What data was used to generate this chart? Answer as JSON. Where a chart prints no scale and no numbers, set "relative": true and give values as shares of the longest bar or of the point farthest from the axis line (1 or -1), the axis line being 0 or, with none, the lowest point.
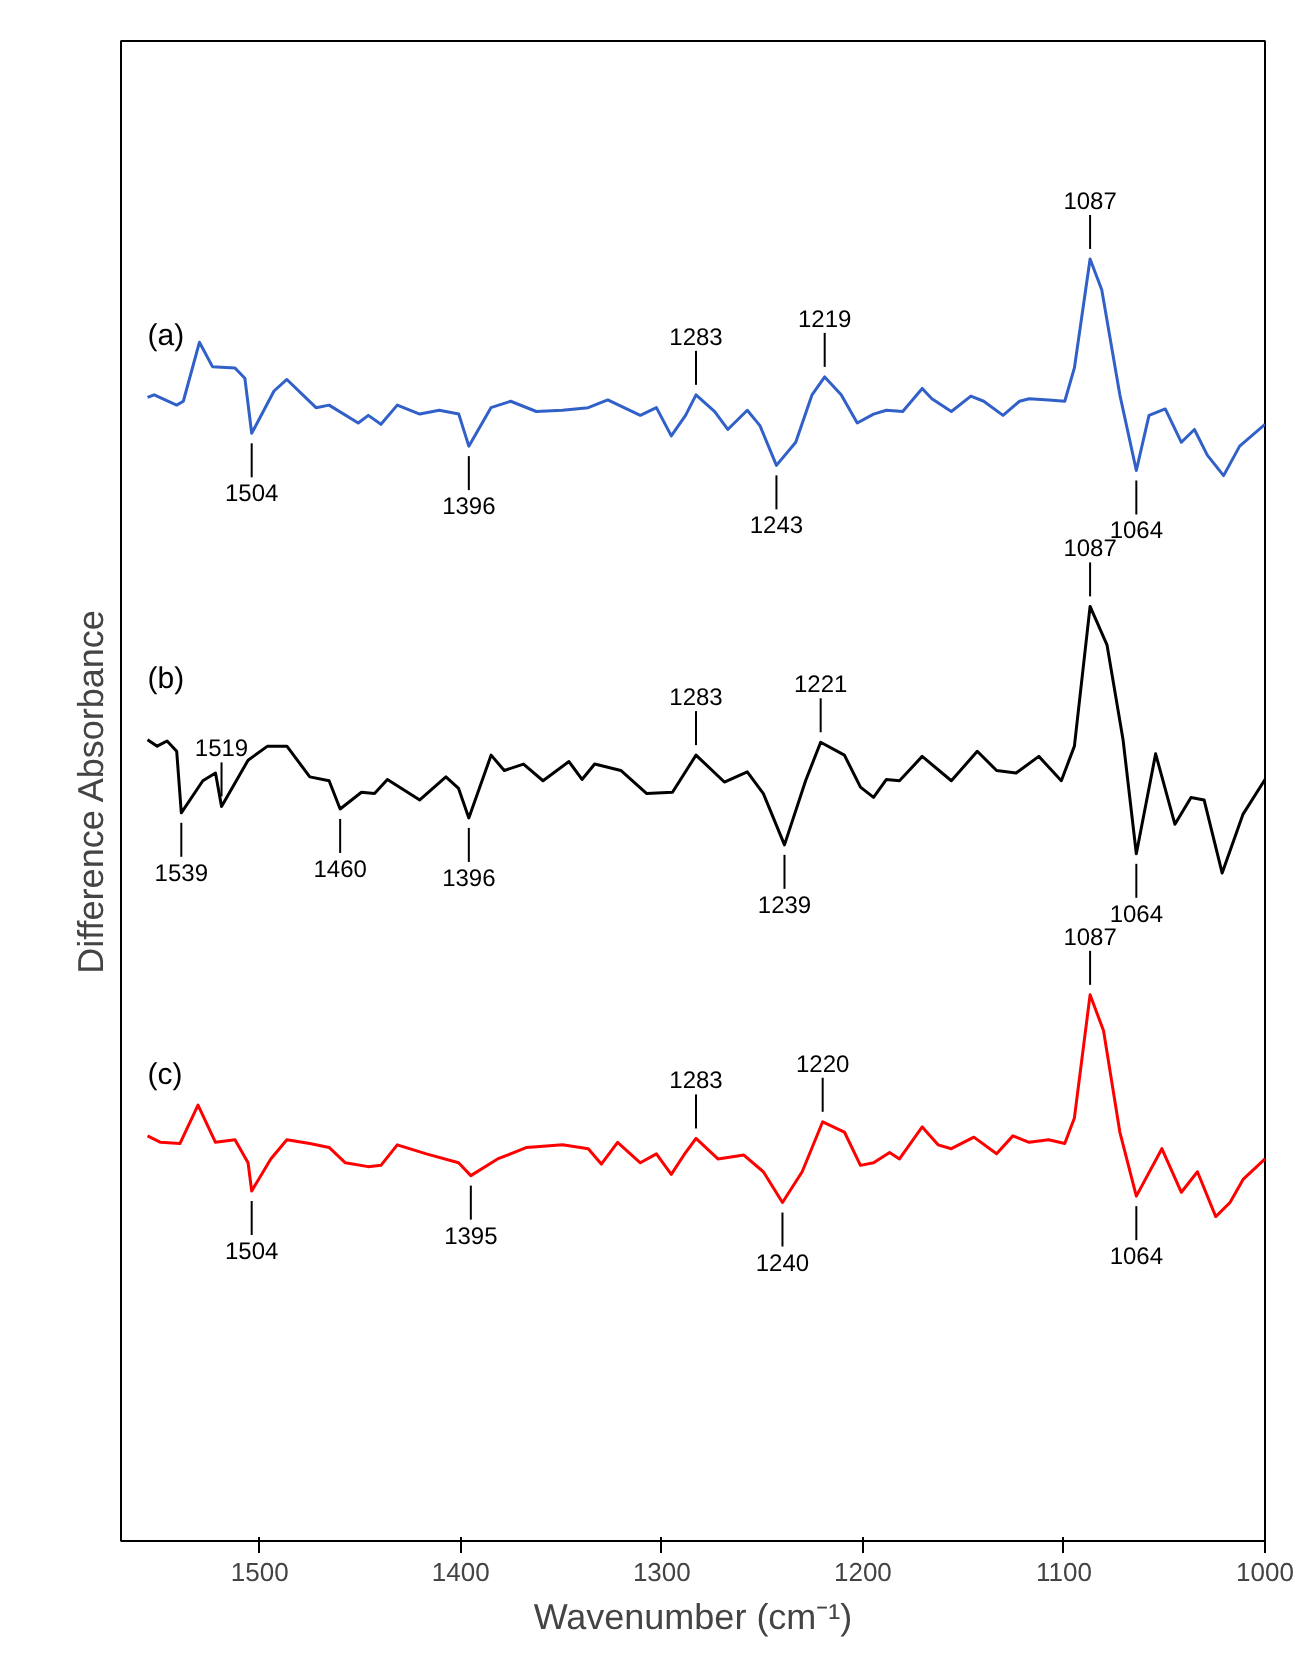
{
  "chart_data": {
    "type": "line",
    "relative": true,
    "xlabel": "Wavenumber (cm⁻¹)",
    "ylabel": "Difference Absorbance",
    "xlim": [
      1569,
      1000
    ],
    "xticks": [
      1500,
      1400,
      1300,
      1200,
      1100,
      1000
    ],
    "grid": false,
    "marker": "none",
    "line_style": "solid",
    "series": [
      {
        "name": "(a)",
        "color": "#3060c8",
        "x": [
          1555.8,
          1552.5,
          1541.3,
          1538,
          1530,
          1523.5,
          1512.3,
          1507.4,
          1504,
          1492.9,
          1486.5,
          1472,
          1465.5,
          1451,
          1446,
          1439.7,
          1431.6,
          1420.4,
          1410.7,
          1401,
          1396,
          1385,
          1375.2,
          1362.4,
          1349.4,
          1336.6,
          1326.9,
          1310.7,
          1302.7,
          1295.3,
          1288.2,
          1283,
          1273.7,
          1267.2,
          1257.5,
          1251.2,
          1243,
          1233.4,
          1225.3,
          1219,
          1210.8,
          1202.8,
          1194.7,
          1188.3,
          1180.2,
          1170.5,
          1165.7,
          1156,
          1146.3,
          1139.9,
          1130.3,
          1122.1,
          1117.3,
          1107.6,
          1099.6,
          1094.8,
          1087,
          1081.2,
          1072.2,
          1064,
          1057.7,
          1049.6,
          1041.6,
          1035.1,
          1028.7,
          1020.6,
          1012.6,
          1000
        ],
        "values": [
          0.892,
          0.894,
          0.886,
          0.889,
          0.935,
          0.916,
          0.915,
          0.907,
          0.864,
          0.897,
          0.906,
          0.884,
          0.886,
          0.872,
          0.878,
          0.871,
          0.886,
          0.879,
          0.882,
          0.879,
          0.854,
          0.884,
          0.889,
          0.881,
          0.882,
          0.884,
          0.89,
          0.878,
          0.884,
          0.862,
          0.878,
          0.894,
          0.881,
          0.867,
          0.882,
          0.87,
          0.839,
          0.857,
          0.894,
          0.908,
          0.894,
          0.872,
          0.879,
          0.882,
          0.881,
          0.899,
          0.891,
          0.881,
          0.893,
          0.889,
          0.878,
          0.889,
          0.891,
          0.89,
          0.889,
          0.915,
          1.0,
          0.976,
          0.894,
          0.835,
          0.878,
          0.883,
          0.857,
          0.867,
          0.847,
          0.831,
          0.854,
          0.871
        ]
      },
      {
        "name": "(b)",
        "color": "#000000",
        "x": [
          1555.8,
          1551,
          1546.1,
          1541.3,
          1539,
          1528.3,
          1522,
          1519,
          1505.8,
          1496.1,
          1486.5,
          1475.1,
          1465.5,
          1460,
          1449.4,
          1442.9,
          1436.5,
          1420.4,
          1407.4,
          1401.1,
          1396,
          1384.9,
          1378.4,
          1368.8,
          1359.1,
          1346.2,
          1339.7,
          1333.4,
          1320.4,
          1307.5,
          1294.7,
          1283,
          1268.9,
          1257.5,
          1249.5,
          1239,
          1228.5,
          1221,
          1209.2,
          1201.2,
          1194.7,
          1188.3,
          1181.8,
          1170.5,
          1156,
          1143.1,
          1133.5,
          1123.8,
          1112.5,
          1101.3,
          1094.8,
          1087,
          1078.6,
          1070.6,
          1064,
          1054.4,
          1044.8,
          1036.8,
          1030.3,
          1021.3,
          1010.9,
          1000
        ],
        "values": [
          0.625,
          0.62,
          0.624,
          0.616,
          0.568,
          0.593,
          0.599,
          0.573,
          0.609,
          0.62,
          0.62,
          0.596,
          0.593,
          0.571,
          0.584,
          0.583,
          0.594,
          0.578,
          0.596,
          0.587,
          0.564,
          0.613,
          0.601,
          0.606,
          0.593,
          0.608,
          0.594,
          0.606,
          0.601,
          0.583,
          0.584,
          0.613,
          0.592,
          0.6,
          0.583,
          0.543,
          0.593,
          0.623,
          0.613,
          0.588,
          0.58,
          0.594,
          0.593,
          0.612,
          0.593,
          0.616,
          0.601,
          0.599,
          0.612,
          0.593,
          0.62,
          0.729,
          0.699,
          0.625,
          0.536,
          0.614,
          0.559,
          0.58,
          0.578,
          0.521,
          0.567,
          0.594
        ]
      },
      {
        "name": "(c)",
        "color": "#ff0000",
        "x": [
          1555.8,
          1549.3,
          1539.7,
          1530.7,
          1522,
          1512.3,
          1505.8,
          1504,
          1494.5,
          1486.5,
          1475.1,
          1465.5,
          1457.4,
          1446.1,
          1439.7,
          1431.6,
          1417.1,
          1401.1,
          1395,
          1381.7,
          1367.2,
          1349.4,
          1336.6,
          1330.1,
          1322,
          1310.7,
          1302.7,
          1295.3,
          1288.2,
          1283,
          1272.1,
          1259.2,
          1249.5,
          1240,
          1230.2,
          1220,
          1209.2,
          1201.2,
          1194.7,
          1186.7,
          1181.8,
          1170.5,
          1162.6,
          1156,
          1144.8,
          1133.5,
          1125.4,
          1117.3,
          1107.6,
          1099.6,
          1094.8,
          1087,
          1080.3,
          1072.2,
          1064,
          1051.3,
          1041.6,
          1033.6,
          1024.5,
          1017.4,
          1010.9,
          1000
        ],
        "values": [
          0.316,
          0.311,
          0.31,
          0.34,
          0.311,
          0.313,
          0.295,
          0.273,
          0.298,
          0.313,
          0.31,
          0.307,
          0.295,
          0.292,
          0.293,
          0.309,
          0.302,
          0.295,
          0.285,
          0.298,
          0.307,
          0.309,
          0.306,
          0.294,
          0.311,
          0.295,
          0.302,
          0.286,
          0.303,
          0.314,
          0.298,
          0.301,
          0.288,
          0.264,
          0.288,
          0.327,
          0.319,
          0.293,
          0.295,
          0.303,
          0.298,
          0.323,
          0.309,
          0.306,
          0.315,
          0.302,
          0.316,
          0.311,
          0.313,
          0.31,
          0.33,
          0.426,
          0.398,
          0.319,
          0.269,
          0.306,
          0.272,
          0.288,
          0.253,
          0.264,
          0.282,
          0.298
        ]
      }
    ],
    "annotations": [
      {
        "text": "1504",
        "x": 1504,
        "y": 0.864
      },
      {
        "text": "1396",
        "x": 1396,
        "y": 0.854
      },
      {
        "text": "1283",
        "x": 1283,
        "y": 0.894
      },
      {
        "text": "1243",
        "x": 1243,
        "y": 0.839
      },
      {
        "text": "1219",
        "x": 1219,
        "y": 0.908
      },
      {
        "text": "1087",
        "x": 1087,
        "y": 1.0
      },
      {
        "text": "1064",
        "x": 1064,
        "y": 0.835
      },
      {
        "text": "1539",
        "x": 1539,
        "y": 0.568
      },
      {
        "text": "1519",
        "x": 1519,
        "y": 0.573
      },
      {
        "text": "1460",
        "x": 1460,
        "y": 0.571
      },
      {
        "text": "1396",
        "x": 1396,
        "y": 0.564
      },
      {
        "text": "1283",
        "x": 1283,
        "y": 0.613
      },
      {
        "text": "1239",
        "x": 1239,
        "y": 0.543
      },
      {
        "text": "1221",
        "x": 1221,
        "y": 0.623
      },
      {
        "text": "1087",
        "x": 1087,
        "y": 0.729
      },
      {
        "text": "1064",
        "x": 1064,
        "y": 0.536
      },
      {
        "text": "1504",
        "x": 1504,
        "y": 0.273
      },
      {
        "text": "1395",
        "x": 1395,
        "y": 0.285
      },
      {
        "text": "1283",
        "x": 1283,
        "y": 0.314
      },
      {
        "text": "1240",
        "x": 1240,
        "y": 0.264
      },
      {
        "text": "1220",
        "x": 1220,
        "y": 0.327
      },
      {
        "text": "1087",
        "x": 1087,
        "y": 0.426
      },
      {
        "text": "1064",
        "x": 1064,
        "y": 0.269
      }
    ]
  }
}
